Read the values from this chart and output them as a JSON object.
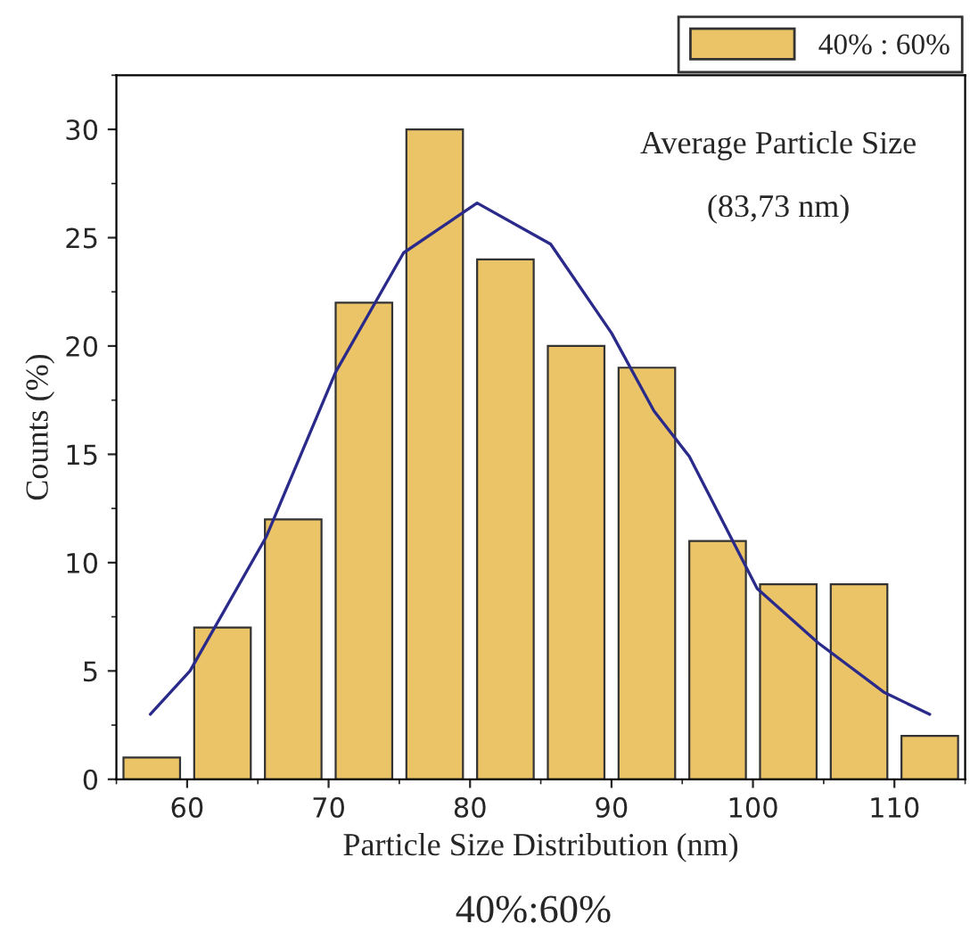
{
  "chart_data": {
    "type": "histogram",
    "xlabel": "Particle Size Distribution (nm)",
    "ylabel": "Counts (%)",
    "bins": [
      55,
      60,
      65,
      70,
      75,
      80,
      85,
      90,
      95,
      100,
      105,
      110,
      115
    ],
    "series": [
      {
        "name": "40% : 60%",
        "color": "#ebc468",
        "values": [
          1,
          7,
          12,
          22,
          30,
          24,
          20,
          19,
          11,
          9,
          9,
          2
        ]
      },
      {
        "type": "line",
        "color": "#2a2a8a",
        "x": [
          57.4,
          60.2,
          65.6,
          70.5,
          75.3,
          80.5,
          85.7,
          90.0,
          93.0,
          95.5,
          100.3,
          104.6,
          109.3,
          112.5
        ],
        "values": [
          3.0,
          5.0,
          11.2,
          18.8,
          24.3,
          26.6,
          24.7,
          20.6,
          17.0,
          14.9,
          8.8,
          6.3,
          4.0,
          3.0
        ]
      }
    ],
    "xlim": [
      55,
      115
    ],
    "ylim": [
      0,
      32.5
    ],
    "xticks": [
      60,
      70,
      80,
      90,
      100,
      110
    ],
    "yticks": [
      0,
      5,
      10,
      15,
      20,
      25,
      30
    ],
    "grid": false,
    "legend": "top right",
    "annotations": [
      "Average Particle Size",
      "(83,73 nm)",
      "40%:60%"
    ]
  }
}
